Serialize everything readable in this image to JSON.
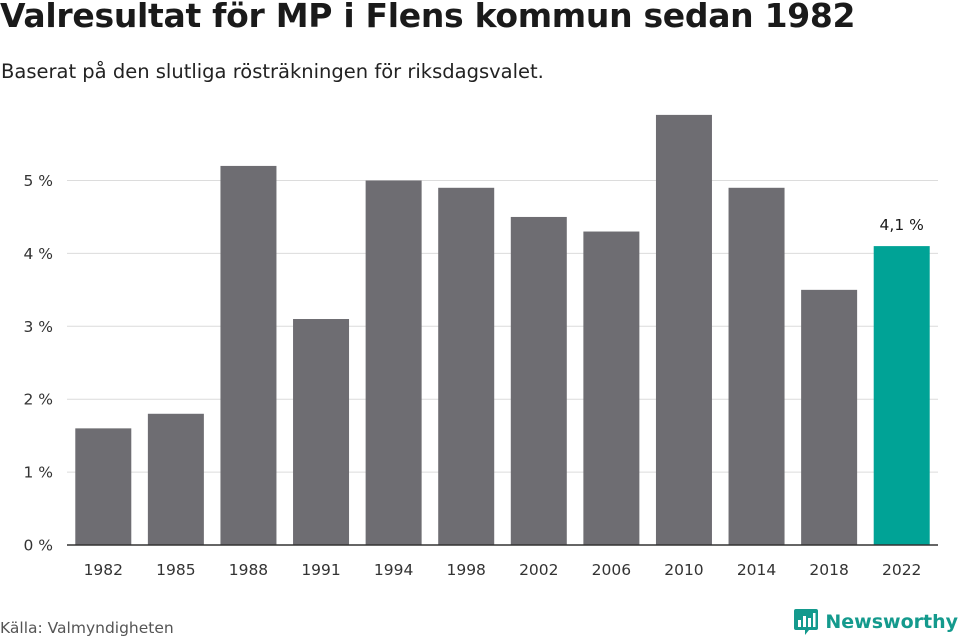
{
  "header": {
    "title": "Valresultat för MP i Flens kommun sedan 1982",
    "subtitle": "Baserat på den slutliga rösträkningen för riksdagsvalet."
  },
  "footer": {
    "source": "Källa: Valmyndigheten",
    "brand": "Newsworthy",
    "brand_icon": "bar-chart-speech-bubble-icon"
  },
  "colors": {
    "bar": "#6e6d72",
    "highlight": "#00a396",
    "grid": "#dcdcdc",
    "axis": "#333333",
    "brand": "#149a8d"
  },
  "chart_data": {
    "type": "bar",
    "categories": [
      "1982",
      "1985",
      "1988",
      "1991",
      "1994",
      "1998",
      "2002",
      "2006",
      "2010",
      "2014",
      "2018",
      "2022"
    ],
    "values": [
      1.6,
      1.8,
      5.2,
      3.1,
      5.0,
      4.9,
      4.5,
      4.3,
      5.9,
      4.9,
      3.5,
      4.1
    ],
    "ylim": [
      0,
      6
    ],
    "yticks": [
      0,
      1,
      2,
      3,
      4,
      5
    ],
    "ytick_labels": [
      "0 %",
      "1 %",
      "2 %",
      "3 %",
      "4 %",
      "5 %"
    ],
    "highlight_index": 11,
    "data_labels": [
      {
        "index": 11,
        "text": "4,1 %"
      }
    ],
    "grid": true,
    "legend": "none",
    "xlabel": "",
    "ylabel": ""
  }
}
